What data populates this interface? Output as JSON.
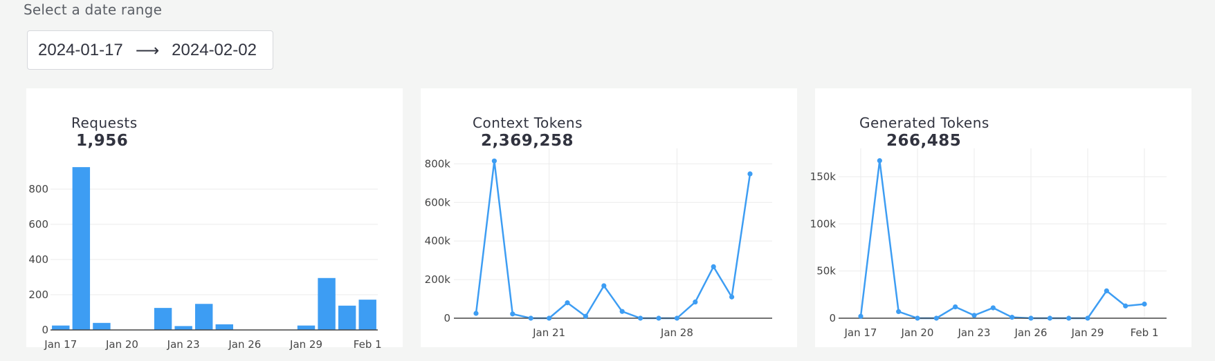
{
  "date_picker": {
    "label": "Select a date range",
    "start": "2024-01-17",
    "arrow": "⟶",
    "end": "2024-02-02"
  },
  "cards": [
    {
      "title": "Requests",
      "total": "1,956"
    },
    {
      "title": "Context Tokens",
      "total": "2,369,258"
    },
    {
      "title": "Generated Tokens",
      "total": "266,485"
    }
  ],
  "colors": {
    "accent": "#3d9df3",
    "background": "#f4f5f4",
    "card": "#ffffff"
  },
  "chart_data": [
    {
      "type": "bar",
      "title": "Requests",
      "x": [
        "2024-01-17",
        "2024-01-18",
        "2024-01-19",
        "2024-01-20",
        "2024-01-21",
        "2024-01-22",
        "2024-01-23",
        "2024-01-24",
        "2024-01-25",
        "2024-01-26",
        "2024-01-27",
        "2024-01-28",
        "2024-01-29",
        "2024-01-30",
        "2024-01-31",
        "2024-02-01"
      ],
      "values": [
        25,
        925,
        40,
        0,
        0,
        125,
        22,
        148,
        32,
        0,
        0,
        0,
        25,
        295,
        138,
        172
      ],
      "ylim": [
        0,
        1000
      ],
      "y_ticks": [
        0,
        200,
        400,
        600,
        800
      ],
      "y_tick_labels": [
        "0",
        "200",
        "400",
        "600",
        "800"
      ],
      "x_ticks": [
        "2024-01-17",
        "2024-01-20",
        "2024-01-23",
        "2024-01-26",
        "2024-01-29",
        "2024-02-01"
      ],
      "x_tick_labels": [
        "Jan 17",
        "Jan 20",
        "Jan 23",
        "Jan 26",
        "Jan 29",
        "Feb 1"
      ],
      "xlabel": "",
      "ylabel": "",
      "grid": true
    },
    {
      "type": "line",
      "title": "Context Tokens",
      "x": [
        "2024-01-17",
        "2024-01-18",
        "2024-01-19",
        "2024-01-20",
        "2024-01-21",
        "2024-01-22",
        "2024-01-23",
        "2024-01-24",
        "2024-01-25",
        "2024-01-26",
        "2024-01-27",
        "2024-01-28",
        "2024-01-29",
        "2024-01-30",
        "2024-01-31",
        "2024-02-01"
      ],
      "values": [
        25000,
        815000,
        22000,
        0,
        0,
        80000,
        10000,
        168000,
        35000,
        0,
        0,
        0,
        84000,
        267000,
        110000,
        748000
      ],
      "ylim": [
        0,
        880000
      ],
      "y_ticks": [
        0,
        200000,
        400000,
        600000,
        800000
      ],
      "y_tick_labels": [
        "0",
        "200k",
        "400k",
        "600k",
        "800k"
      ],
      "x_ticks": [
        "2024-01-21",
        "2024-01-28"
      ],
      "x_tick_labels": [
        "Jan 21",
        "Jan 28"
      ],
      "xlabel": "",
      "ylabel": "",
      "grid": true
    },
    {
      "type": "line",
      "title": "Generated Tokens",
      "x": [
        "2024-01-17",
        "2024-01-18",
        "2024-01-19",
        "2024-01-20",
        "2024-01-21",
        "2024-01-22",
        "2024-01-23",
        "2024-01-24",
        "2024-01-25",
        "2024-01-26",
        "2024-01-27",
        "2024-01-28",
        "2024-01-29",
        "2024-01-30",
        "2024-01-31",
        "2024-02-01"
      ],
      "values": [
        2000,
        167000,
        7000,
        0,
        0,
        12000,
        3000,
        11000,
        1000,
        0,
        0,
        0,
        0,
        29000,
        13000,
        15000
      ],
      "ylim": [
        0,
        180000
      ],
      "y_ticks": [
        0,
        50000,
        100000,
        150000
      ],
      "y_tick_labels": [
        "0",
        "50k",
        "100k",
        "150k"
      ],
      "x_ticks": [
        "2024-01-17",
        "2024-01-20",
        "2024-01-23",
        "2024-01-26",
        "2024-01-29",
        "2024-02-01"
      ],
      "x_tick_labels": [
        "Jan 17",
        "Jan 20",
        "Jan 23",
        "Jan 26",
        "Jan 29",
        "Feb 1"
      ],
      "xlabel": "",
      "ylabel": "",
      "grid": true
    }
  ]
}
